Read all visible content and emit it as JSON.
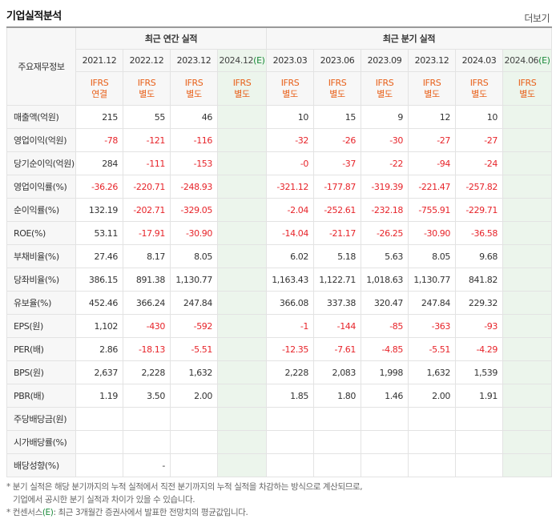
{
  "header": {
    "title": "기업실적분석",
    "more_label": "더보기"
  },
  "table": {
    "row_header_label": "주요재무정보",
    "groups": {
      "annual": "최근 연간 실적",
      "quarter": "최근 분기 실적"
    },
    "periods": [
      "2021.12",
      "2022.12",
      "2023.12",
      "2024.12",
      "2023.03",
      "2023.06",
      "2023.09",
      "2023.12",
      "2024.03",
      "2024.06"
    ],
    "estimate_mark": "(E)",
    "ifrs": [
      {
        "l1": "IFRS",
        "l2": "연결"
      },
      {
        "l1": "IFRS",
        "l2": "별도"
      },
      {
        "l1": "IFRS",
        "l2": "별도"
      },
      {
        "l1": "IFRS",
        "l2": "별도"
      },
      {
        "l1": "IFRS",
        "l2": "별도"
      },
      {
        "l1": "IFRS",
        "l2": "별도"
      },
      {
        "l1": "IFRS",
        "l2": "별도"
      },
      {
        "l1": "IFRS",
        "l2": "별도"
      },
      {
        "l1": "IFRS",
        "l2": "별도"
      },
      {
        "l1": "IFRS",
        "l2": "별도"
      }
    ],
    "rows": [
      {
        "label": "매출액(억원)",
        "values": [
          "215",
          "55",
          "46",
          "",
          "10",
          "15",
          "9",
          "12",
          "10",
          ""
        ]
      },
      {
        "label": "영업이익(억원)",
        "values": [
          "-78",
          "-121",
          "-116",
          "",
          "-32",
          "-26",
          "-30",
          "-27",
          "-27",
          ""
        ]
      },
      {
        "label": "당기순이익(억원)",
        "values": [
          "284",
          "-111",
          "-153",
          "",
          "-0",
          "-37",
          "-22",
          "-94",
          "-24",
          ""
        ]
      },
      {
        "label": "영업이익률(%)",
        "values": [
          "-36.26",
          "-220.71",
          "-248.93",
          "",
          "-321.12",
          "-177.87",
          "-319.39",
          "-221.47",
          "-257.82",
          ""
        ]
      },
      {
        "label": "순이익률(%)",
        "values": [
          "132.19",
          "-202.71",
          "-329.05",
          "",
          "-2.04",
          "-252.61",
          "-232.18",
          "-755.91",
          "-229.71",
          ""
        ]
      },
      {
        "label": "ROE(%)",
        "values": [
          "53.11",
          "-17.91",
          "-30.90",
          "",
          "-14.04",
          "-21.17",
          "-26.25",
          "-30.90",
          "-36.58",
          ""
        ]
      },
      {
        "label": "부채비율(%)",
        "values": [
          "27.46",
          "8.17",
          "8.05",
          "",
          "6.02",
          "5.18",
          "5.63",
          "8.05",
          "9.68",
          ""
        ]
      },
      {
        "label": "당좌비율(%)",
        "values": [
          "386.15",
          "891.38",
          "1,130.77",
          "",
          "1,163.43",
          "1,122.71",
          "1,018.63",
          "1,130.77",
          "841.82",
          ""
        ]
      },
      {
        "label": "유보율(%)",
        "values": [
          "452.46",
          "366.24",
          "247.84",
          "",
          "366.08",
          "337.38",
          "320.47",
          "247.84",
          "229.32",
          ""
        ]
      },
      {
        "label": "EPS(원)",
        "values": [
          "1,102",
          "-430",
          "-592",
          "",
          "-1",
          "-144",
          "-85",
          "-363",
          "-93",
          ""
        ]
      },
      {
        "label": "PER(배)",
        "values": [
          "2.86",
          "-18.13",
          "-5.51",
          "",
          "-12.35",
          "-7.61",
          "-4.85",
          "-5.51",
          "-4.29",
          ""
        ]
      },
      {
        "label": "BPS(원)",
        "values": [
          "2,637",
          "2,228",
          "1,632",
          "",
          "2,228",
          "2,083",
          "1,998",
          "1,632",
          "1,539",
          ""
        ]
      },
      {
        "label": "PBR(배)",
        "values": [
          "1.19",
          "3.50",
          "2.00",
          "",
          "1.85",
          "1.80",
          "1.46",
          "2.00",
          "1.91",
          ""
        ]
      },
      {
        "label": "주당배당금(원)",
        "values": [
          "",
          "",
          "",
          "",
          "",
          "",
          "",
          "",
          "",
          ""
        ]
      },
      {
        "label": "시가배당률(%)",
        "values": [
          "",
          "",
          "",
          "",
          "",
          "",
          "",
          "",
          "",
          ""
        ]
      },
      {
        "label": "배당성향(%)",
        "values": [
          "",
          "-",
          "",
          "",
          "",
          "",
          "",
          "",
          "",
          ""
        ]
      }
    ]
  },
  "notes": {
    "line1": "* 분기 실적은 해당 분기까지의 누적 실적에서 직전 분기까지의 누적 실적을 차감하는 방식으로 계산되므로,",
    "line2": "기업에서 공시한 분기 실적과 차이가 있을 수 있습니다.",
    "line3_prefix": "* 컨센서스",
    "line3_mark": "(E)",
    "line3_suffix": ": 최근 3개월간 증권사에서 발표한 전망치의 평균값입니다."
  },
  "colors": {
    "negative": "#e7242a",
    "ifrs": "#e8601a",
    "estimate_bg": "#ecf5ec",
    "estimate_mark": "#1a8a3a"
  }
}
